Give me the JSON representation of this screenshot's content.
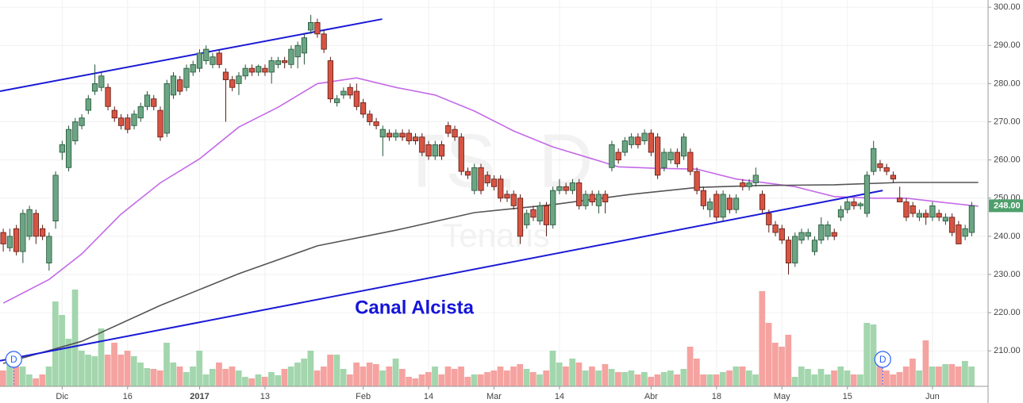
{
  "chart_data": {
    "type": "candlestick",
    "watermark": "TS, D",
    "watermark_subtitle": "Tenaris",
    "annotation": "Canal Alcista",
    "ylim": [
      200.7,
      301.9
    ],
    "xlim": [
      -0.5,
      150.5
    ],
    "yticks": [
      {
        "value": 300,
        "label": "300.00"
      },
      {
        "value": 290,
        "label": "290.00"
      },
      {
        "value": 280,
        "label": "280.00"
      },
      {
        "value": 270,
        "label": "270.00"
      },
      {
        "value": 260,
        "label": "260.00"
      },
      {
        "value": 250,
        "label": "250.00"
      },
      {
        "value": 240,
        "label": "240.00"
      },
      {
        "value": 230,
        "label": "230.00"
      },
      {
        "value": 220,
        "label": "220.00"
      },
      {
        "value": 210,
        "label": "210.00"
      }
    ],
    "xticks": [
      {
        "value": 9,
        "label": "Dic"
      },
      {
        "value": 19,
        "label": "16"
      },
      {
        "value": 30,
        "label": "2017"
      },
      {
        "value": 40,
        "label": "13"
      },
      {
        "value": 55,
        "label": "Feb"
      },
      {
        "value": 65,
        "label": "14"
      },
      {
        "value": 75,
        "label": "Mar"
      },
      {
        "value": 85,
        "label": "14"
      },
      {
        "value": 99,
        "label": "Abr"
      },
      {
        "value": 109,
        "label": "18"
      },
      {
        "value": 119,
        "label": "May"
      },
      {
        "value": 129,
        "label": "15"
      },
      {
        "value": 142,
        "label": "Jun"
      }
    ],
    "grid": true,
    "last_price": {
      "value": 248,
      "label": "248.00",
      "color": "#4f9f6c"
    },
    "up_color": "#6ba583",
    "up_border": "#225437",
    "down_color": "#d75442",
    "down_border": "#5b1a13",
    "volume_up_color": "#a3d6ad",
    "volume_down_color": "#f5a3a0",
    "volume_lim": [
      0,
      130
    ],
    "candles": [
      [
        241,
        242,
        236,
        238
      ],
      [
        237,
        242,
        236,
        240
      ],
      [
        242,
        243,
        235,
        236
      ],
      [
        236,
        247,
        233,
        246
      ],
      [
        240,
        248,
        239,
        247
      ],
      [
        246,
        247,
        238,
        240
      ],
      [
        242,
        243,
        239,
        240
      ],
      [
        233,
        241,
        231,
        240
      ],
      [
        244,
        257,
        242,
        256
      ],
      [
        262,
        265,
        260,
        264
      ],
      [
        258,
        269,
        257,
        268
      ],
      [
        265,
        271,
        264,
        270
      ],
      [
        269,
        272,
        268,
        271
      ],
      [
        273,
        277,
        272,
        276
      ],
      [
        278,
        285,
        277,
        280
      ],
      [
        279,
        283,
        278,
        282
      ],
      [
        279,
        280,
        273,
        274
      ],
      [
        273,
        274,
        270,
        271
      ],
      [
        271,
        272,
        268,
        269
      ],
      [
        271,
        272,
        267,
        268
      ],
      [
        269,
        273,
        268,
        272
      ],
      [
        271,
        275,
        270,
        274
      ],
      [
        274,
        278,
        273,
        277
      ],
      [
        276,
        277,
        273,
        274
      ],
      [
        273,
        274,
        265,
        266
      ],
      [
        267,
        281,
        266,
        280
      ],
      [
        277,
        283,
        276,
        282
      ],
      [
        281,
        282,
        277,
        278
      ],
      [
        279,
        285,
        278,
        284
      ],
      [
        283,
        286,
        282,
        285
      ],
      [
        284,
        289,
        283,
        288
      ],
      [
        286,
        290,
        285,
        289
      ],
      [
        285,
        288,
        284,
        287
      ],
      [
        288,
        289,
        284,
        285
      ],
      [
        283,
        284,
        270,
        281
      ],
      [
        281,
        282,
        278,
        279
      ],
      [
        280,
        283,
        277,
        282
      ],
      [
        282,
        285,
        281,
        284
      ],
      [
        284,
        285,
        282,
        283
      ],
      [
        283,
        285,
        282,
        284.5
      ],
      [
        284,
        285,
        282,
        283
      ],
      [
        283,
        287,
        280,
        286
      ],
      [
        285,
        287,
        284,
        286
      ],
      [
        286,
        287,
        284,
        285.5
      ],
      [
        285,
        290,
        284,
        289
      ],
      [
        287,
        291,
        284,
        290
      ],
      [
        288,
        293,
        285,
        292
      ],
      [
        294,
        298,
        293,
        296
      ],
      [
        296,
        297,
        292,
        293
      ],
      [
        293,
        294,
        288,
        289
      ],
      [
        286,
        287,
        275,
        276
      ],
      [
        275,
        277,
        274,
        276
      ],
      [
        277,
        279,
        276,
        278
      ],
      [
        279,
        280,
        276,
        277
      ],
      [
        278,
        280,
        273,
        274
      ],
      [
        275,
        276,
        271,
        272
      ],
      [
        272,
        273,
        269,
        270
      ],
      [
        270,
        271,
        268,
        269
      ],
      [
        266,
        269,
        261,
        268
      ],
      [
        267,
        268,
        265,
        266
      ],
      [
        266,
        268,
        265,
        267
      ],
      [
        267,
        268,
        265,
        266
      ],
      [
        267,
        268,
        264,
        265
      ],
      [
        266,
        267,
        264,
        265
      ],
      [
        266,
        267,
        261,
        262
      ],
      [
        264,
        265,
        260,
        261
      ],
      [
        261,
        265,
        260,
        264
      ],
      [
        264,
        265,
        260,
        261
      ],
      [
        269,
        270,
        266,
        267
      ],
      [
        268,
        269,
        265,
        266
      ],
      [
        266,
        267,
        256,
        257
      ],
      [
        257,
        258,
        255,
        256
      ],
      [
        252,
        259,
        251,
        258
      ],
      [
        258,
        259,
        251,
        252
      ],
      [
        256,
        257,
        253,
        254
      ],
      [
        255,
        256,
        252,
        253
      ],
      [
        255,
        256,
        249,
        250
      ],
      [
        251,
        252,
        249,
        250
      ],
      [
        251,
        252,
        247,
        248
      ],
      [
        250,
        251,
        238,
        240
      ],
      [
        243,
        247,
        242,
        246
      ],
      [
        247,
        248,
        244,
        245
      ],
      [
        244,
        249,
        243,
        248
      ],
      [
        248,
        249,
        240,
        243
      ],
      [
        243,
        253,
        242,
        252
      ],
      [
        252,
        255,
        251,
        253
      ],
      [
        253,
        254,
        251,
        252
      ],
      [
        252,
        255,
        251,
        254
      ],
      [
        254,
        255,
        247,
        248
      ],
      [
        248,
        252,
        247,
        251
      ],
      [
        251,
        252,
        248,
        249
      ],
      [
        248,
        252,
        246,
        251
      ],
      [
        251,
        252,
        246,
        249
      ],
      [
        258,
        265,
        257,
        264
      ],
      [
        262,
        263,
        259,
        260
      ],
      [
        262,
        266,
        261,
        265
      ],
      [
        264,
        267,
        263,
        266
      ],
      [
        266,
        267,
        263,
        264
      ],
      [
        265,
        268,
        264,
        267
      ],
      [
        267,
        268,
        261,
        262
      ],
      [
        266,
        267,
        255,
        256
      ],
      [
        258,
        263,
        257,
        262
      ],
      [
        260,
        263,
        259,
        262
      ],
      [
        262,
        263,
        258,
        259
      ],
      [
        261,
        267,
        260,
        266
      ],
      [
        262,
        263,
        256,
        257
      ],
      [
        257,
        258,
        251,
        252
      ],
      [
        252,
        253,
        247,
        248
      ],
      [
        247,
        250,
        245,
        249
      ],
      [
        251,
        252,
        244,
        245
      ],
      [
        245,
        252,
        244,
        251
      ],
      [
        250,
        251,
        246,
        247
      ],
      [
        247,
        251,
        246,
        250
      ],
      [
        254,
        255,
        252,
        253
      ],
      [
        253,
        255,
        252,
        254
      ],
      [
        254,
        258,
        253,
        256
      ],
      [
        251,
        252,
        246,
        247
      ],
      [
        246,
        247,
        241,
        243
      ],
      [
        243,
        244,
        240,
        241
      ],
      [
        242,
        243,
        238,
        239
      ],
      [
        239,
        240,
        230,
        233
      ],
      [
        233,
        241,
        232,
        240
      ],
      [
        239,
        242,
        238,
        241
      ],
      [
        240,
        242,
        239,
        241
      ],
      [
        236,
        240,
        235,
        239
      ],
      [
        239,
        245,
        238,
        243
      ],
      [
        240,
        244,
        239,
        243
      ],
      [
        241,
        242,
        239,
        240
      ],
      [
        245,
        248,
        244,
        247
      ],
      [
        247,
        250,
        246,
        249
      ],
      [
        249,
        250,
        247,
        248
      ],
      [
        248,
        249,
        247,
        248.5
      ],
      [
        246,
        257,
        245,
        256
      ],
      [
        257,
        265,
        256,
        263
      ],
      [
        259,
        260,
        257,
        258
      ],
      [
        258,
        259,
        256,
        257
      ],
      [
        256,
        257,
        254,
        255
      ],
      [
        250,
        253,
        249,
        249
      ],
      [
        249,
        250,
        244,
        245
      ],
      [
        248,
        249,
        245,
        246
      ],
      [
        245,
        247,
        244,
        246
      ],
      [
        246,
        247,
        243,
        245
      ],
      [
        245,
        249,
        244,
        248
      ],
      [
        246,
        247,
        244,
        245
      ],
      [
        244,
        246,
        243,
        245
      ],
      [
        245,
        246,
        240,
        241
      ],
      [
        243,
        244,
        238,
        238
      ],
      [
        240,
        243,
        239,
        242
      ],
      [
        241,
        249,
        240,
        248
      ]
    ],
    "volume": [
      20,
      40,
      25,
      25,
      15,
      10,
      15,
      25,
      107,
      90,
      60,
      122,
      45,
      40,
      38,
      73,
      40,
      55,
      40,
      45,
      38,
      30,
      23,
      22,
      20,
      55,
      30,
      25,
      18,
      25,
      45,
      15,
      22,
      30,
      22,
      25,
      20,
      12,
      10,
      15,
      12,
      18,
      14,
      22,
      25,
      30,
      35,
      45,
      20,
      25,
      40,
      40,
      22,
      15,
      30,
      25,
      30,
      28,
      20,
      25,
      35,
      22,
      12,
      10,
      15,
      18,
      25,
      15,
      25,
      22,
      25,
      12,
      15,
      15,
      18,
      20,
      25,
      20,
      25,
      28,
      22,
      18,
      15,
      20,
      45,
      30,
      25,
      35,
      30,
      20,
      25,
      20,
      28,
      22,
      18,
      18,
      20,
      15,
      18,
      12,
      15,
      18,
      20,
      15,
      22,
      50,
      35,
      15,
      15,
      15,
      18,
      20,
      25,
      25,
      20,
      15,
      120,
      80,
      55,
      50,
      65,
      12,
      25,
      22,
      15,
      22,
      15,
      20,
      25,
      20,
      15,
      15,
      80,
      78,
      40,
      20,
      15,
      18,
      25,
      35,
      20,
      58,
      25,
      25,
      28,
      28,
      25,
      32,
      25
    ],
    "series": [
      {
        "color": "#c46ae8",
        "x": [
          0,
          7,
          12,
          18,
          24,
          30,
          36,
          42,
          48,
          54,
          60,
          66,
          72,
          78,
          84,
          90,
          94,
          100,
          106,
          112,
          121,
          127,
          133,
          138,
          143,
          149
        ],
        "values": [
          222.5,
          228.7,
          235.4,
          245.8,
          254,
          260.3,
          268.6,
          273.8,
          280,
          281.5,
          279,
          277,
          272.8,
          267.6,
          263.4,
          260.3,
          258.2,
          257.8,
          257.6,
          255,
          253,
          250.4,
          250,
          250,
          249,
          247.9
        ]
      },
      {
        "color": "#555555",
        "x": [
          0,
          12,
          24,
          36,
          48,
          60,
          72,
          84,
          96,
          106,
          115,
          127,
          137,
          149
        ],
        "values": [
          206.7,
          212.5,
          221.9,
          230.2,
          237.5,
          241.6,
          246.2,
          248.3,
          251,
          252.8,
          253.3,
          253.5,
          254.1,
          254.1
        ]
      }
    ],
    "trendlines": [
      {
        "color": "#1a1ad6",
        "x": [
          -0.5,
          57.9
        ],
        "values": [
          278,
          296.9
        ]
      },
      {
        "color": "#1a1ad6",
        "x": [
          -0.5,
          134.4
        ],
        "values": [
          207.4,
          252
        ]
      }
    ],
    "markers": [
      {
        "x": 1.6,
        "label": "D"
      },
      {
        "x": 134.4,
        "label": "D"
      }
    ]
  }
}
